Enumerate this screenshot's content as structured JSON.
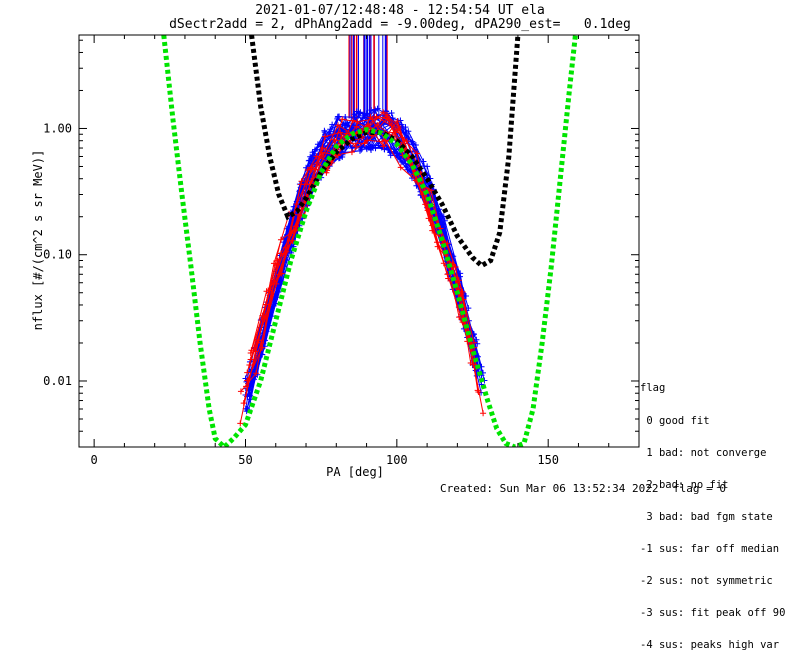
{
  "chart_data": {
    "type": "line",
    "title_line1": "2021-01-07/12:48:48 - 12:54:54 UT ela",
    "title_line2": "dSectr2add = 2, dPhAng2add = -9.00deg, dPA290_est=   0.1deg",
    "xlabel": "PA [deg]",
    "ylabel": "nflux [#/(cm^2 s sr MeV)]",
    "xlim": [
      -5,
      180
    ],
    "ylim": [
      0.003,
      5.5
    ],
    "yscale": "log",
    "x_ticks": [
      0,
      50,
      100,
      150
    ],
    "x_tick_labels": [
      "0",
      "50",
      "100",
      "150"
    ],
    "y_ticks": [
      0.01,
      0.1,
      1.0
    ],
    "y_tick_labels": [
      "0.01",
      "0.10",
      "1.00"
    ],
    "grid": false,
    "series": [
      {
        "color": "#000000",
        "style": "thick-dashed",
        "x": [
          52,
          55,
          58,
          61,
          64,
          67,
          70,
          75,
          80,
          85,
          90,
          95,
          100,
          105,
          110,
          115,
          120,
          125,
          128,
          131,
          134,
          137,
          140
        ],
        "y": [
          5.5,
          1.5,
          0.6,
          0.3,
          0.2,
          0.22,
          0.28,
          0.45,
          0.65,
          0.82,
          0.93,
          0.93,
          0.8,
          0.6,
          0.4,
          0.25,
          0.14,
          0.095,
          0.082,
          0.09,
          0.15,
          0.6,
          5.5
        ]
      },
      {
        "color": "#00e400",
        "style": "thick-dashed",
        "x": [
          23,
          26,
          29,
          32,
          35,
          38,
          40,
          43,
          46,
          50,
          55,
          60,
          65,
          70,
          75,
          80,
          85,
          90,
          95,
          100,
          105,
          110,
          115,
          120,
          125,
          130,
          133,
          136,
          139,
          142,
          145,
          148,
          151,
          154,
          157,
          159
        ],
        "y": [
          5.5,
          1.2,
          0.3,
          0.08,
          0.02,
          0.006,
          0.0035,
          0.003,
          0.0035,
          0.0045,
          0.01,
          0.03,
          0.09,
          0.22,
          0.45,
          0.72,
          0.9,
          0.98,
          0.92,
          0.75,
          0.52,
          0.3,
          0.13,
          0.05,
          0.018,
          0.007,
          0.0042,
          0.0032,
          0.003,
          0.0032,
          0.006,
          0.02,
          0.08,
          0.4,
          2.0,
          5.5
        ]
      },
      {
        "color": "#0000ff",
        "style": "line+plus",
        "name": "",
        "x": [
          50,
          55,
          60,
          65,
          70,
          75,
          80,
          85,
          90,
          95,
          100,
          105,
          110,
          115,
          120,
          125,
          130
        ],
        "y": [
          0.007,
          0.02,
          0.06,
          0.15,
          0.35,
          0.6,
          0.85,
          0.95,
          1.0,
          0.98,
          0.85,
          0.6,
          0.35,
          0.15,
          0.06,
          0.02,
          0.007
        ]
      },
      {
        "color": "#ff0000",
        "style": "line+plus",
        "x": [
          48,
          52,
          56,
          60,
          65,
          70,
          75,
          80,
          85,
          90,
          95,
          100,
          105,
          110,
          115,
          120,
          125,
          129
        ],
        "y": [
          0.006,
          0.012,
          0.03,
          0.07,
          0.16,
          0.33,
          0.58,
          0.82,
          0.95,
          1.02,
          0.95,
          0.8,
          0.55,
          0.3,
          0.13,
          0.05,
          0.017,
          0.006
        ]
      }
    ]
  },
  "flag_legend": {
    "title": "flag",
    "items": [
      " 0 good fit",
      " 1 bad: not converge",
      " 2 bad: no fit",
      " 3 bad: bad fgm state",
      "-1 sus: far off median",
      "-2 sus: not symmetric",
      "-3 sus: fit peak off 90",
      "-4 sus: peaks high var"
    ]
  },
  "footer": {
    "created": "Created: Sun Mar 06 13:52:34 2022",
    "flag": "flag = 0"
  }
}
